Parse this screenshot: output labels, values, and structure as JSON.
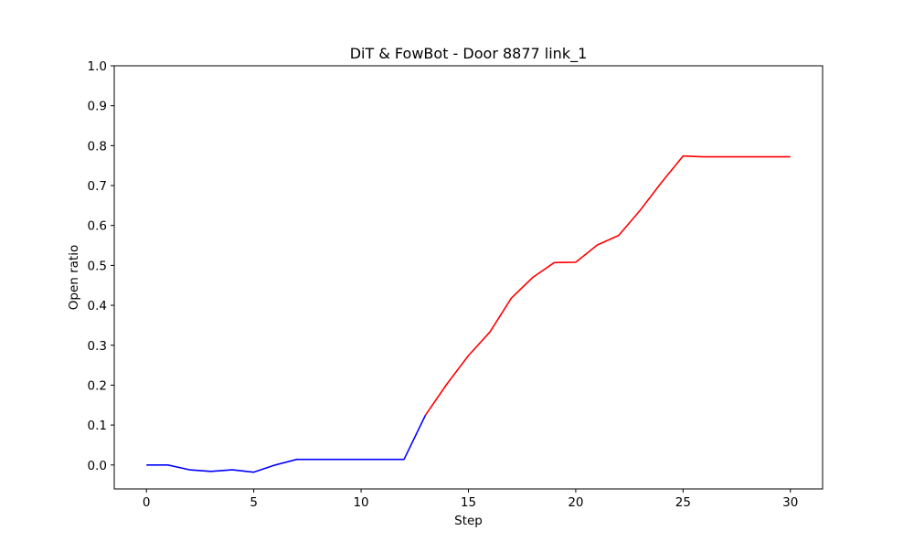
{
  "chart_data": {
    "type": "line",
    "title": "DiT & FowBot - Door 8877 link_1",
    "xlabel": "Step",
    "ylabel": "Open ratio",
    "xlim": [
      -1.5,
      31.5
    ],
    "ylim": [
      -0.06,
      1.0
    ],
    "xticks": [
      0,
      5,
      10,
      15,
      20,
      25,
      30
    ],
    "yticks": [
      0.0,
      0.1,
      0.2,
      0.3,
      0.4,
      0.5,
      0.6,
      0.7,
      0.8,
      0.9,
      1.0
    ],
    "xtick_labels": [
      "0",
      "5",
      "10",
      "15",
      "20",
      "25",
      "30"
    ],
    "ytick_labels": [
      "0.0",
      "0.1",
      "0.2",
      "0.3",
      "0.4",
      "0.5",
      "0.6",
      "0.7",
      "0.8",
      "0.9",
      "1.0"
    ],
    "grid": false,
    "series": [
      {
        "name": "DiT",
        "color": "#0000ff",
        "x": [
          0,
          1,
          2,
          3,
          4,
          5,
          6,
          7,
          8,
          9,
          10,
          11,
          12,
          13
        ],
        "y": [
          0.0,
          0.0,
          -0.012,
          -0.016,
          -0.012,
          -0.018,
          0.0,
          0.014,
          0.014,
          0.014,
          0.014,
          0.014,
          0.014,
          0.125
        ]
      },
      {
        "name": "FowBot",
        "color": "#ff0000",
        "x": [
          13,
          14,
          15,
          16,
          17,
          18,
          19,
          20,
          21,
          22,
          23,
          24,
          25,
          26,
          27,
          28,
          29,
          30
        ],
        "y": [
          0.125,
          0.203,
          0.274,
          0.333,
          0.418,
          0.47,
          0.507,
          0.508,
          0.551,
          0.575,
          0.638,
          0.708,
          0.774,
          0.772,
          0.772,
          0.772,
          0.772,
          0.772
        ]
      }
    ]
  }
}
